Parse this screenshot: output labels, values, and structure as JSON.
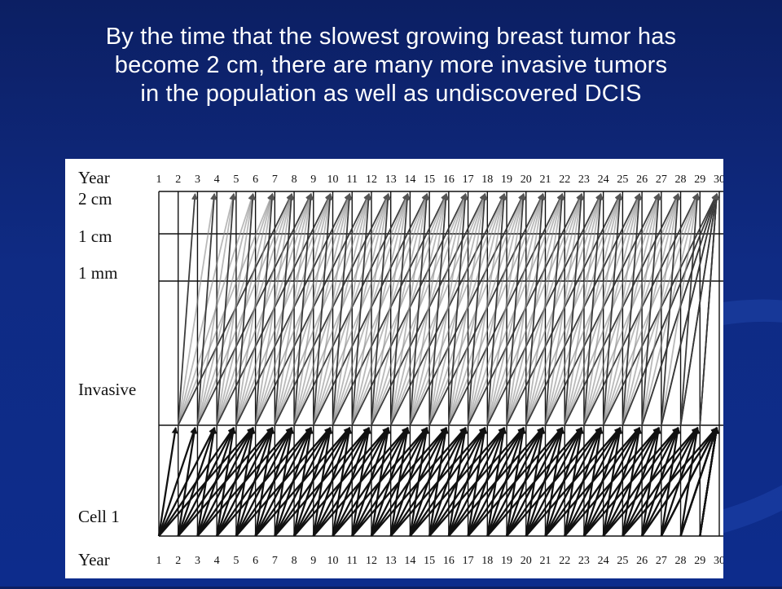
{
  "slide": {
    "title_lines": [
      "By the time that the slowest growing breast tumor has",
      "become 2 cm, there are many more invasive tumors",
      "in the population as well as undiscovered DCIS"
    ]
  },
  "diagram": {
    "y_levels": [
      "Year",
      "2 cm",
      "1 cm",
      "1 mm",
      "Invasive",
      "Cell 1",
      "Year"
    ],
    "top_axis_label": "Year",
    "bottom_axis_label": "Year",
    "years": [
      "1",
      "2",
      "3",
      "4",
      "5",
      "6",
      "7",
      "8",
      "9",
      "10",
      "11",
      "12",
      "13",
      "14",
      "15",
      "16",
      "17",
      "18",
      "19",
      "20",
      "21",
      "22",
      "23",
      "24",
      "25",
      "26",
      "27",
      "28",
      "29",
      "30"
    ],
    "colors": {
      "background": "#0f2b84",
      "title_text": "#ffffff",
      "figure_bg": "#ffffff",
      "dcis_arrows": "#111111",
      "invasive_arrows": "#8a8a8a",
      "grid": "#111111"
    }
  }
}
